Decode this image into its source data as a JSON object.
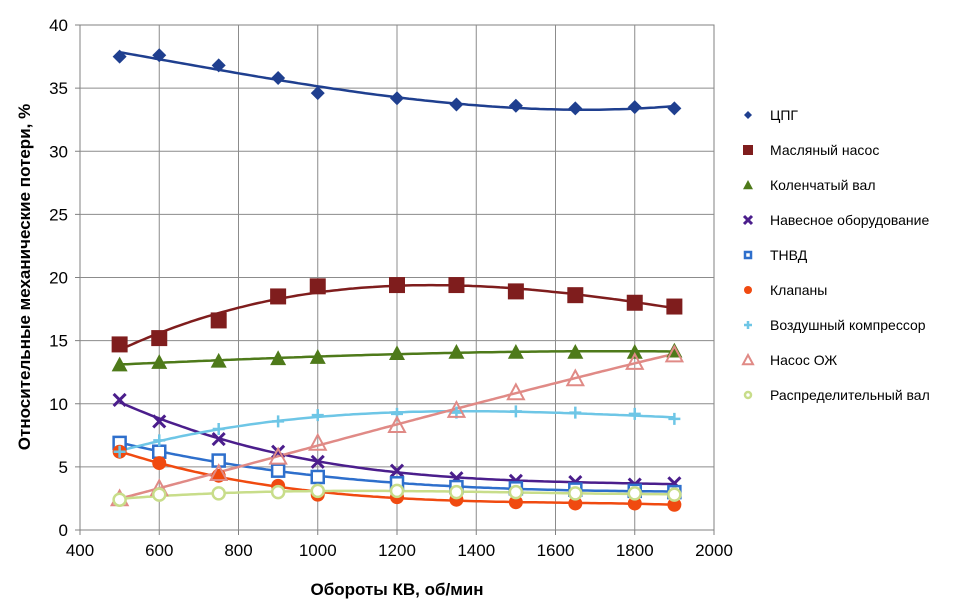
{
  "chart_data": {
    "type": "scatter",
    "xlabel": "Обороты КВ, об/мин",
    "ylabel": "Относительные механические потери, %",
    "xlim": [
      400,
      2000
    ],
    "ylim": [
      0,
      40
    ],
    "x_ticks": [
      "400",
      "600",
      "800",
      "1000",
      "1200",
      "1400",
      "1600",
      "1800",
      "2000"
    ],
    "y_ticks": [
      "0",
      "5",
      "10",
      "15",
      "20",
      "25",
      "30",
      "35",
      "40"
    ],
    "grid": true,
    "legend_position": "right",
    "x": [
      500,
      600,
      750,
      900,
      1000,
      1200,
      1350,
      1500,
      1650,
      1800,
      1900
    ],
    "series": [
      {
        "name": "ЦПГ",
        "marker": "diamond",
        "color": "#1f3f8f",
        "values": [
          37.5,
          37.6,
          36.8,
          35.8,
          34.6,
          34.2,
          33.7,
          33.6,
          33.4,
          33.5,
          33.4
        ]
      },
      {
        "name": "Масляный насос",
        "marker": "square-filled",
        "color": "#7f1d1d",
        "values": [
          14.7,
          15.2,
          16.6,
          18.5,
          19.3,
          19.4,
          19.4,
          18.9,
          18.6,
          18.0,
          17.7
        ]
      },
      {
        "name": "Коленчатый вал",
        "marker": "triangle-filled",
        "color": "#4e7a1a",
        "values": [
          13.1,
          13.3,
          13.4,
          13.6,
          13.7,
          14.0,
          14.1,
          14.1,
          14.1,
          14.1,
          14.2
        ]
      },
      {
        "name": "Навесное оборудование",
        "marker": "x",
        "color": "#4b1e8c",
        "values": [
          10.3,
          8.6,
          7.2,
          6.2,
          5.4,
          4.7,
          4.1,
          3.9,
          3.8,
          3.6,
          3.7
        ]
      },
      {
        "name": "ТНВД",
        "marker": "square-open",
        "color": "#2e6fcc",
        "values": [
          6.9,
          6.2,
          5.5,
          4.7,
          4.2,
          3.7,
          3.4,
          3.3,
          3.2,
          3.1,
          3.0
        ]
      },
      {
        "name": "Клапаны",
        "marker": "circle-filled",
        "color": "#f04a10",
        "values": [
          6.2,
          5.3,
          4.3,
          3.5,
          2.8,
          2.6,
          2.4,
          2.2,
          2.1,
          2.1,
          2.0
        ]
      },
      {
        "name": "Воздушный компрессор",
        "marker": "plus",
        "color": "#6ec6e6",
        "values": [
          6.2,
          7.1,
          8.0,
          8.6,
          9.1,
          9.2,
          9.3,
          9.4,
          9.3,
          9.2,
          8.8
        ]
      },
      {
        "name": "Насос ОЖ",
        "marker": "triangle-open",
        "color": "#e08a86",
        "values": [
          2.5,
          3.3,
          4.5,
          5.8,
          6.9,
          8.3,
          9.5,
          10.9,
          12.0,
          13.3,
          13.9
        ]
      },
      {
        "name": "Распределительный вал",
        "marker": "circle-open",
        "color": "#c8dd8a",
        "values": [
          2.4,
          2.8,
          2.9,
          3.0,
          3.1,
          3.1,
          3.0,
          3.0,
          2.9,
          2.9,
          2.8
        ]
      }
    ]
  }
}
